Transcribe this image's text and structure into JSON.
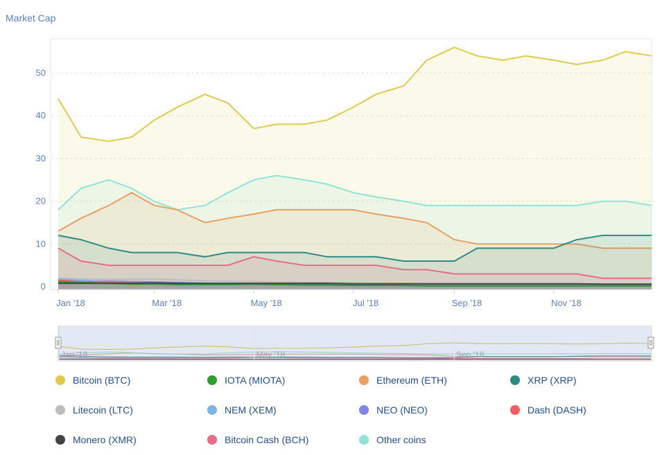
{
  "title": "Market Cap",
  "chart_data": {
    "type": "area",
    "title": "Market Cap",
    "xlabel": "",
    "ylabel": "",
    "ylim": [
      0,
      58
    ],
    "yticks": [
      0,
      10,
      20,
      30,
      40,
      50
    ],
    "x_tick_labels": [
      "Jan '18",
      "Mar '18",
      "May '18",
      "Jul '18",
      "Sep '18",
      "Nov '18"
    ],
    "navigator_labels": [
      "Jan '18",
      "May '18",
      "Sep '18"
    ],
    "grid": true,
    "legend_position": "bottom",
    "x": [
      "2018-01-01",
      "2018-01-15",
      "2018-02-01",
      "2018-02-15",
      "2018-03-01",
      "2018-03-15",
      "2018-04-01",
      "2018-04-15",
      "2018-05-01",
      "2018-05-15",
      "2018-06-01",
      "2018-06-15",
      "2018-07-01",
      "2018-07-15",
      "2018-08-01",
      "2018-08-15",
      "2018-09-01",
      "2018-09-15",
      "2018-10-01",
      "2018-10-15",
      "2018-11-01",
      "2018-11-15",
      "2018-12-01",
      "2018-12-15",
      "2018-12-31"
    ],
    "series": [
      {
        "name": "Bitcoin (BTC)",
        "color": "#e0ca4b",
        "values": [
          44,
          35,
          34,
          35,
          39,
          42,
          45,
          43,
          37,
          38,
          38,
          39,
          42,
          45,
          47,
          53,
          56,
          54,
          53,
          54,
          53,
          52,
          53,
          55,
          54
        ]
      },
      {
        "name": "IOTA (MIOTA)",
        "color": "#2ca02c",
        "values": [
          1.2,
          1.0,
          0.8,
          0.6,
          0.6,
          0.5,
          0.5,
          0.5,
          0.6,
          0.5,
          0.4,
          0.4,
          0.3,
          0.3,
          0.3,
          0.2,
          0.2,
          0.2,
          0.2,
          0.2,
          0.2,
          0.2,
          0.2,
          0.2,
          0.2
        ]
      },
      {
        "name": "Ethereum (ETH)",
        "color": "#e8a060",
        "values": [
          13,
          16,
          19,
          22,
          19,
          18,
          15,
          16,
          17,
          18,
          18,
          18,
          18,
          17,
          16,
          15,
          11,
          10,
          10,
          10,
          10,
          10,
          9,
          9,
          9
        ]
      },
      {
        "name": "XRP (XRP)",
        "color": "#2e8b84",
        "values": [
          12,
          11,
          9,
          8,
          8,
          8,
          7,
          8,
          8,
          8,
          8,
          7,
          7,
          7,
          6,
          6,
          6,
          9,
          9,
          9,
          9,
          11,
          12,
          12,
          12
        ]
      },
      {
        "name": "Litecoin (LTC)",
        "color": "#bcbcbc",
        "values": [
          2.0,
          1.8,
          1.7,
          1.8,
          1.8,
          1.6,
          1.4,
          1.3,
          1.2,
          1.1,
          1.0,
          1.0,
          0.9,
          0.8,
          0.8,
          0.7,
          0.7,
          0.7,
          0.7,
          0.7,
          0.7,
          0.6,
          0.6,
          0.5,
          0.5
        ]
      },
      {
        "name": "NEM (XEM)",
        "color": "#7cb5ec",
        "values": [
          1.8,
          1.5,
          1.0,
          0.9,
          0.7,
          0.6,
          0.6,
          0.5,
          0.5,
          0.4,
          0.4,
          0.4,
          0.3,
          0.3,
          0.3,
          0.2,
          0.2,
          0.2,
          0.2,
          0.2,
          0.2,
          0.2,
          0.2,
          0.2,
          0.2
        ]
      },
      {
        "name": "NEO (NEO)",
        "color": "#8085e9",
        "values": [
          1.0,
          1.2,
          1.3,
          1.2,
          1.1,
          1.0,
          0.8,
          0.7,
          0.7,
          0.6,
          0.5,
          0.5,
          0.4,
          0.4,
          0.3,
          0.3,
          0.3,
          0.3,
          0.3,
          0.3,
          0.3,
          0.3,
          0.3,
          0.3,
          0.3
        ]
      },
      {
        "name": "Dash (DASH)",
        "color": "#f15c5c",
        "values": [
          1.5,
          1.2,
          1.0,
          0.9,
          0.8,
          0.7,
          0.6,
          0.6,
          0.6,
          0.5,
          0.5,
          0.5,
          0.4,
          0.4,
          0.4,
          0.3,
          0.3,
          0.3,
          0.3,
          0.3,
          0.3,
          0.3,
          0.3,
          0.3,
          0.3
        ]
      },
      {
        "name": "Monero (XMR)",
        "color": "#434348",
        "values": [
          0.8,
          0.8,
          0.8,
          0.8,
          0.9,
          0.8,
          0.8,
          0.8,
          0.8,
          0.8,
          0.8,
          0.8,
          0.7,
          0.7,
          0.7,
          0.7,
          0.7,
          0.7,
          0.7,
          0.7,
          0.7,
          0.7,
          0.6,
          0.6,
          0.6
        ]
      },
      {
        "name": "Bitcoin Cash (BCH)",
        "color": "#e86b8a",
        "values": [
          9,
          6,
          5,
          5,
          5,
          5,
          5,
          5,
          7,
          6,
          5,
          5,
          5,
          5,
          4,
          4,
          3,
          3,
          3,
          3,
          3,
          3,
          2,
          2,
          2
        ]
      },
      {
        "name": "Other coins",
        "color": "#8fe3d8",
        "values": [
          18,
          23,
          25,
          23,
          20,
          18,
          19,
          22,
          25,
          26,
          25,
          24,
          22,
          21,
          20,
          19,
          19,
          19,
          19,
          19,
          19,
          19,
          20,
          20,
          19
        ]
      }
    ]
  },
  "legend": [
    {
      "label": "Bitcoin (BTC)",
      "color": "#e0ca4b"
    },
    {
      "label": "IOTA (MIOTA)",
      "color": "#2ca02c"
    },
    {
      "label": "Ethereum (ETH)",
      "color": "#e8a060"
    },
    {
      "label": "XRP (XRP)",
      "color": "#2e8b84"
    },
    {
      "label": "Litecoin (LTC)",
      "color": "#bcbcbc"
    },
    {
      "label": "NEM (XEM)",
      "color": "#7cb5ec"
    },
    {
      "label": "NEO (NEO)",
      "color": "#8085e9"
    },
    {
      "label": "Dash (DASH)",
      "color": "#f15c5c"
    },
    {
      "label": "Monero (XMR)",
      "color": "#434348"
    },
    {
      "label": "Bitcoin Cash (BCH)",
      "color": "#e86b8a"
    },
    {
      "label": "Other coins",
      "color": "#8fe3d8"
    }
  ]
}
